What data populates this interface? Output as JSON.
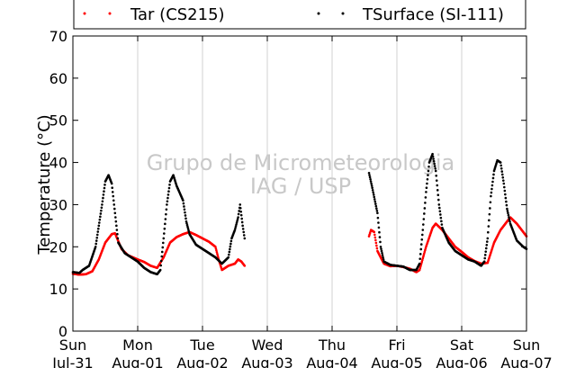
{
  "chart_data": {
    "type": "scatter",
    "ylabel": "Temperature (°C)",
    "ylim": [
      0,
      70
    ],
    "yticks": [
      0,
      10,
      20,
      30,
      40,
      50,
      60,
      70
    ],
    "xlim": [
      0,
      7
    ],
    "x_unit": "days since Sun Jul-31 00:00",
    "x_ticks": [
      {
        "x": 0,
        "day": "Sun",
        "date": "Jul-31"
      },
      {
        "x": 1,
        "day": "Mon",
        "date": "Aug-01"
      },
      {
        "x": 2,
        "day": "Tue",
        "date": "Aug-02"
      },
      {
        "x": 3,
        "day": "Wed",
        "date": "Aug-03"
      },
      {
        "x": 4,
        "day": "Thu",
        "date": "Aug-04"
      },
      {
        "x": 5,
        "day": "Fri",
        "date": "Aug-05"
      },
      {
        "x": 6,
        "day": "Sat",
        "date": "Aug-06"
      },
      {
        "x": 7,
        "day": "Sun",
        "date": "Aug-07"
      }
    ],
    "grid": "vertical",
    "legend_position": "top, above plot",
    "watermark": [
      "Grupo de Micrometeorologia",
      "IAG / USP"
    ],
    "series": [
      {
        "name": "Tar (CS215)",
        "color": "#ff0000",
        "segments": [
          [
            [
              0.0,
              13.6
            ],
            [
              0.1,
              13.4
            ],
            [
              0.2,
              13.5
            ],
            [
              0.3,
              14.2
            ],
            [
              0.4,
              17.0
            ],
            [
              0.5,
              21.0
            ],
            [
              0.6,
              23.0
            ],
            [
              0.65,
              23.2
            ],
            [
              0.75,
              19.5
            ],
            [
              0.85,
              18.0
            ],
            [
              1.0,
              17.0
            ],
            [
              1.1,
              16.4
            ],
            [
              1.2,
              15.5
            ],
            [
              1.3,
              15.0
            ],
            [
              1.4,
              17.5
            ],
            [
              1.5,
              21.0
            ],
            [
              1.6,
              22.3
            ],
            [
              1.7,
              23.0
            ],
            [
              1.8,
              23.5
            ],
            [
              1.9,
              22.8
            ],
            [
              2.0,
              22.0
            ],
            [
              2.1,
              21.2
            ],
            [
              2.2,
              20.0
            ],
            [
              2.25,
              17.0
            ],
            [
              2.3,
              14.5
            ],
            [
              2.4,
              15.5
            ],
            [
              2.5,
              16.0
            ],
            [
              2.55,
              17.0
            ],
            [
              2.6,
              16.5
            ],
            [
              2.65,
              15.5
            ]
          ],
          [
            [
              4.57,
              22.5
            ],
            [
              4.6,
              24.0
            ],
            [
              4.65,
              23.5
            ],
            [
              4.7,
              19.0
            ],
            [
              4.8,
              16.0
            ],
            [
              4.9,
              15.4
            ],
            [
              5.0,
              15.5
            ],
            [
              5.1,
              15.2
            ],
            [
              5.2,
              14.8
            ],
            [
              5.3,
              14.0
            ],
            [
              5.35,
              14.5
            ],
            [
              5.45,
              20.0
            ],
            [
              5.55,
              24.5
            ],
            [
              5.6,
              25.5
            ],
            [
              5.7,
              24.0
            ],
            [
              5.8,
              22.0
            ],
            [
              5.9,
              20.0
            ],
            [
              6.0,
              18.8
            ],
            [
              6.1,
              17.5
            ],
            [
              6.2,
              16.6
            ],
            [
              6.3,
              16.0
            ],
            [
              6.4,
              16.2
            ],
            [
              6.5,
              21.0
            ],
            [
              6.6,
              24.0
            ],
            [
              6.7,
              26.0
            ],
            [
              6.75,
              27.0
            ],
            [
              6.85,
              25.5
            ],
            [
              7.0,
              22.5
            ]
          ]
        ]
      },
      {
        "name": "TSurface (SI-111)",
        "color": "#000000",
        "segments": [
          [
            [
              0.0,
              14.0
            ],
            [
              0.1,
              13.8
            ],
            [
              0.15,
              14.5
            ],
            [
              0.25,
              15.5
            ],
            [
              0.35,
              20.0
            ],
            [
              0.45,
              30.0
            ],
            [
              0.5,
              35.5
            ],
            [
              0.55,
              37.0
            ],
            [
              0.6,
              35.0
            ],
            [
              0.65,
              28.0
            ],
            [
              0.7,
              21.0
            ],
            [
              0.8,
              18.5
            ],
            [
              0.9,
              17.5
            ],
            [
              1.0,
              16.5
            ],
            [
              1.1,
              15.0
            ],
            [
              1.2,
              14.0
            ],
            [
              1.3,
              13.5
            ],
            [
              1.35,
              14.5
            ],
            [
              1.4,
              22.0
            ],
            [
              1.45,
              30.0
            ],
            [
              1.5,
              35.5
            ],
            [
              1.55,
              37.0
            ],
            [
              1.6,
              34.5
            ],
            [
              1.7,
              31.0
            ],
            [
              1.75,
              26.0
            ],
            [
              1.8,
              23.0
            ],
            [
              1.9,
              20.5
            ],
            [
              2.0,
              19.5
            ],
            [
              2.1,
              18.5
            ],
            [
              2.2,
              17.5
            ],
            [
              2.3,
              16.0
            ],
            [
              2.4,
              17.5
            ],
            [
              2.45,
              22.0
            ],
            [
              2.5,
              24.0
            ],
            [
              2.55,
              27.0
            ],
            [
              2.58,
              30.0
            ],
            [
              2.62,
              25.0
            ],
            [
              2.65,
              22.0
            ]
          ],
          [
            [
              4.57,
              37.5
            ],
            [
              4.62,
              34.0
            ],
            [
              4.7,
              28.0
            ],
            [
              4.75,
              20.0
            ],
            [
              4.8,
              16.5
            ],
            [
              4.9,
              15.7
            ],
            [
              5.0,
              15.5
            ],
            [
              5.1,
              15.3
            ],
            [
              5.2,
              14.5
            ],
            [
              5.3,
              14.5
            ],
            [
              5.35,
              16.0
            ],
            [
              5.4,
              24.0
            ],
            [
              5.45,
              33.0
            ],
            [
              5.5,
              40.0
            ],
            [
              5.55,
              42.0
            ],
            [
              5.6,
              38.0
            ],
            [
              5.65,
              30.0
            ],
            [
              5.7,
              24.5
            ],
            [
              5.8,
              21.0
            ],
            [
              5.9,
              19.0
            ],
            [
              6.0,
              18.0
            ],
            [
              6.1,
              17.0
            ],
            [
              6.2,
              16.5
            ],
            [
              6.3,
              15.5
            ],
            [
              6.35,
              16.5
            ],
            [
              6.4,
              22.0
            ],
            [
              6.45,
              32.0
            ],
            [
              6.5,
              38.0
            ],
            [
              6.55,
              40.5
            ],
            [
              6.6,
              40.0
            ],
            [
              6.65,
              35.0
            ],
            [
              6.7,
              29.0
            ],
            [
              6.75,
              25.5
            ],
            [
              6.85,
              21.5
            ],
            [
              6.95,
              20.0
            ],
            [
              7.0,
              19.5
            ]
          ]
        ]
      }
    ]
  }
}
